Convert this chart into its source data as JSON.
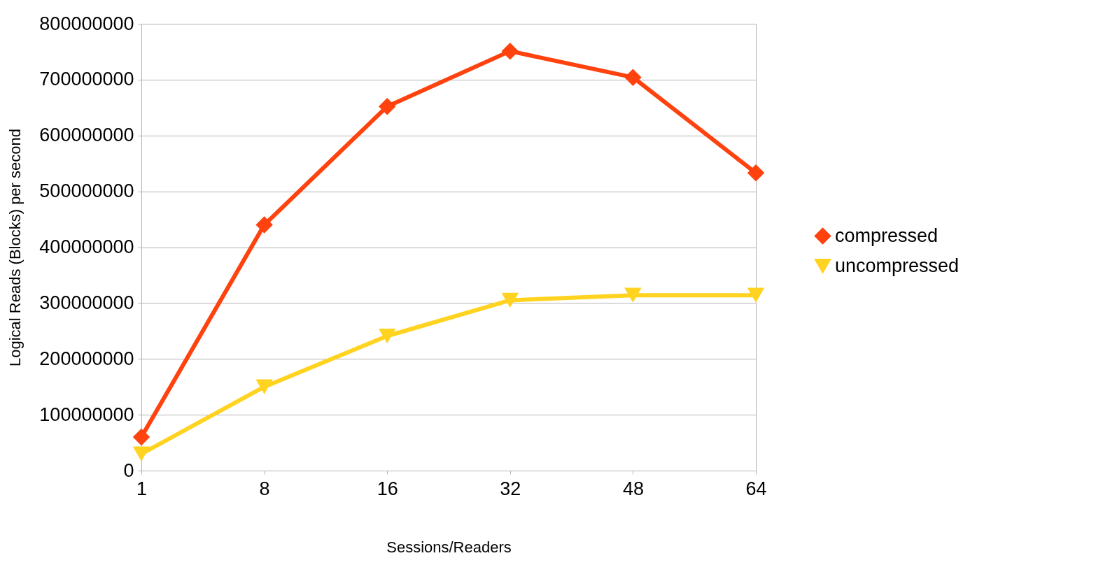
{
  "chart_data": {
    "type": "line",
    "xlabel": "Sessions/Readers",
    "ylabel": "Logical Reads (Blocks) per second",
    "categories": [
      "1",
      "8",
      "16",
      "32",
      "48",
      "64"
    ],
    "series": [
      {
        "name": "compressed",
        "color": "#ff420e",
        "marker": "diamond",
        "values": [
          60000000,
          440000000,
          652000000,
          751000000,
          704000000,
          533000000
        ]
      },
      {
        "name": "uncompressed",
        "color": "#ffd320",
        "marker": "triangle",
        "values": [
          30000000,
          150000000,
          241000000,
          305000000,
          314000000,
          314000000
        ]
      }
    ],
    "ylim": [
      0,
      800000000
    ],
    "yticks": [
      0,
      100000000,
      200000000,
      300000000,
      400000000,
      500000000,
      600000000,
      700000000,
      800000000
    ],
    "grid": "y",
    "legend": "right",
    "line_style": "solid"
  }
}
